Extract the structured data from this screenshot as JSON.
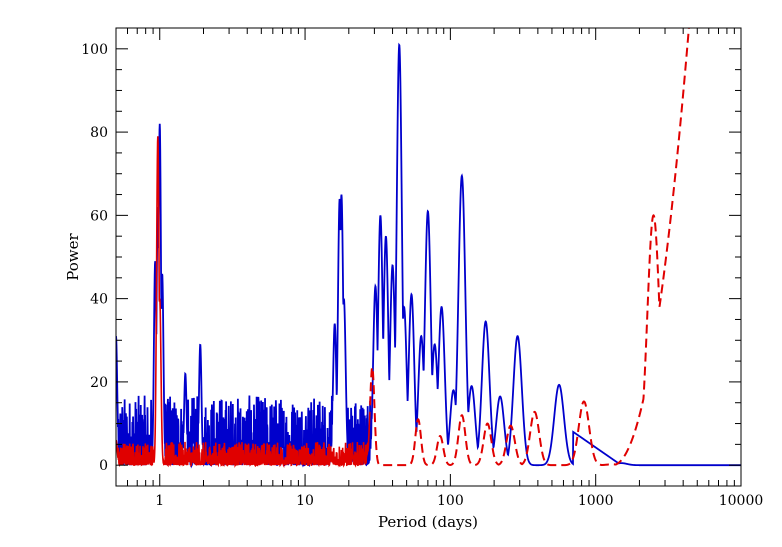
{
  "chart_data": {
    "type": "line",
    "title": "",
    "xlabel": "Period (days)",
    "ylabel": "Power",
    "x_scale": "log",
    "xlim": [
      0.5,
      10000
    ],
    "ylim": [
      -5,
      105
    ],
    "x_ticks": [
      {
        "value": 1,
        "label": "1"
      },
      {
        "value": 10,
        "label": "10"
      },
      {
        "value": 100,
        "label": "100"
      },
      {
        "value": 1000,
        "label": "1000"
      },
      {
        "value": 10000,
        "label": "10000"
      }
    ],
    "y_ticks": [
      {
        "value": 0,
        "label": "0"
      },
      {
        "value": 20,
        "label": "20"
      },
      {
        "value": 40,
        "label": "40"
      },
      {
        "value": 60,
        "label": "60"
      },
      {
        "value": 80,
        "label": "80"
      },
      {
        "value": 100,
        "label": "100"
      }
    ],
    "grid": false,
    "legend": "none",
    "colors": {
      "blue_series": "#0000cc",
      "red_series": "#e00000",
      "axes": "#000000"
    },
    "series": [
      {
        "color": "#0000cc",
        "style": "solid",
        "noise_floor": {
          "x_range": [
            0.5,
            30
          ],
          "typical_max": 12
        },
        "peaks": [
          {
            "period": 0.5,
            "power": 31
          },
          {
            "period": 0.93,
            "power": 49
          },
          {
            "period": 0.97,
            "power": 62
          },
          {
            "period": 1.0,
            "power": 82
          },
          {
            "period": 1.04,
            "power": 46
          },
          {
            "period": 1.5,
            "power": 22
          },
          {
            "period": 1.9,
            "power": 29
          },
          {
            "period": 16,
            "power": 34
          },
          {
            "period": 17.3,
            "power": 64
          },
          {
            "period": 17.8,
            "power": 65
          },
          {
            "period": 18.5,
            "power": 40
          },
          {
            "period": 30.5,
            "power": 43
          },
          {
            "period": 33,
            "power": 60
          },
          {
            "period": 36,
            "power": 55
          },
          {
            "period": 40,
            "power": 48
          },
          {
            "period": 44.5,
            "power": 101
          },
          {
            "period": 48,
            "power": 38
          },
          {
            "period": 54,
            "power": 41
          },
          {
            "period": 63,
            "power": 31
          },
          {
            "period": 70,
            "power": 61
          },
          {
            "period": 78,
            "power": 29
          },
          {
            "period": 87,
            "power": 38
          },
          {
            "period": 105,
            "power": 18
          },
          {
            "period": 120,
            "power": 69.5
          },
          {
            "period": 140,
            "power": 19
          },
          {
            "period": 175,
            "power": 34.5
          },
          {
            "period": 220,
            "power": 16.5
          },
          {
            "period": 290,
            "power": 31
          },
          {
            "period": 560,
            "power": 19.3
          },
          {
            "period": 900,
            "power": 5
          },
          {
            "period": 1500,
            "power": 0.5
          },
          {
            "period": 10000,
            "power": 0
          }
        ]
      },
      {
        "color": "#e00000",
        "style": "solid-then-dashed",
        "dash_from_period": 28,
        "noise_floor": {
          "x_range": [
            0.5,
            28
          ],
          "typical_max": 4
        },
        "peaks": [
          {
            "period": 0.5,
            "power": 6
          },
          {
            "period": 0.97,
            "power": 79
          },
          {
            "period": 1.0,
            "power": 40
          },
          {
            "period": 29,
            "power": 23.5
          },
          {
            "period": 60,
            "power": 11
          },
          {
            "period": 85,
            "power": 7
          },
          {
            "period": 120,
            "power": 12
          },
          {
            "period": 180,
            "power": 10
          },
          {
            "period": 260,
            "power": 9.5
          },
          {
            "period": 380,
            "power": 12.8
          },
          {
            "period": 830,
            "power": 15.3
          },
          {
            "period": 1300,
            "power": 0.2
          },
          {
            "period": 2500,
            "power": 60
          },
          {
            "period": 4500,
            "power": 105
          }
        ]
      }
    ]
  }
}
